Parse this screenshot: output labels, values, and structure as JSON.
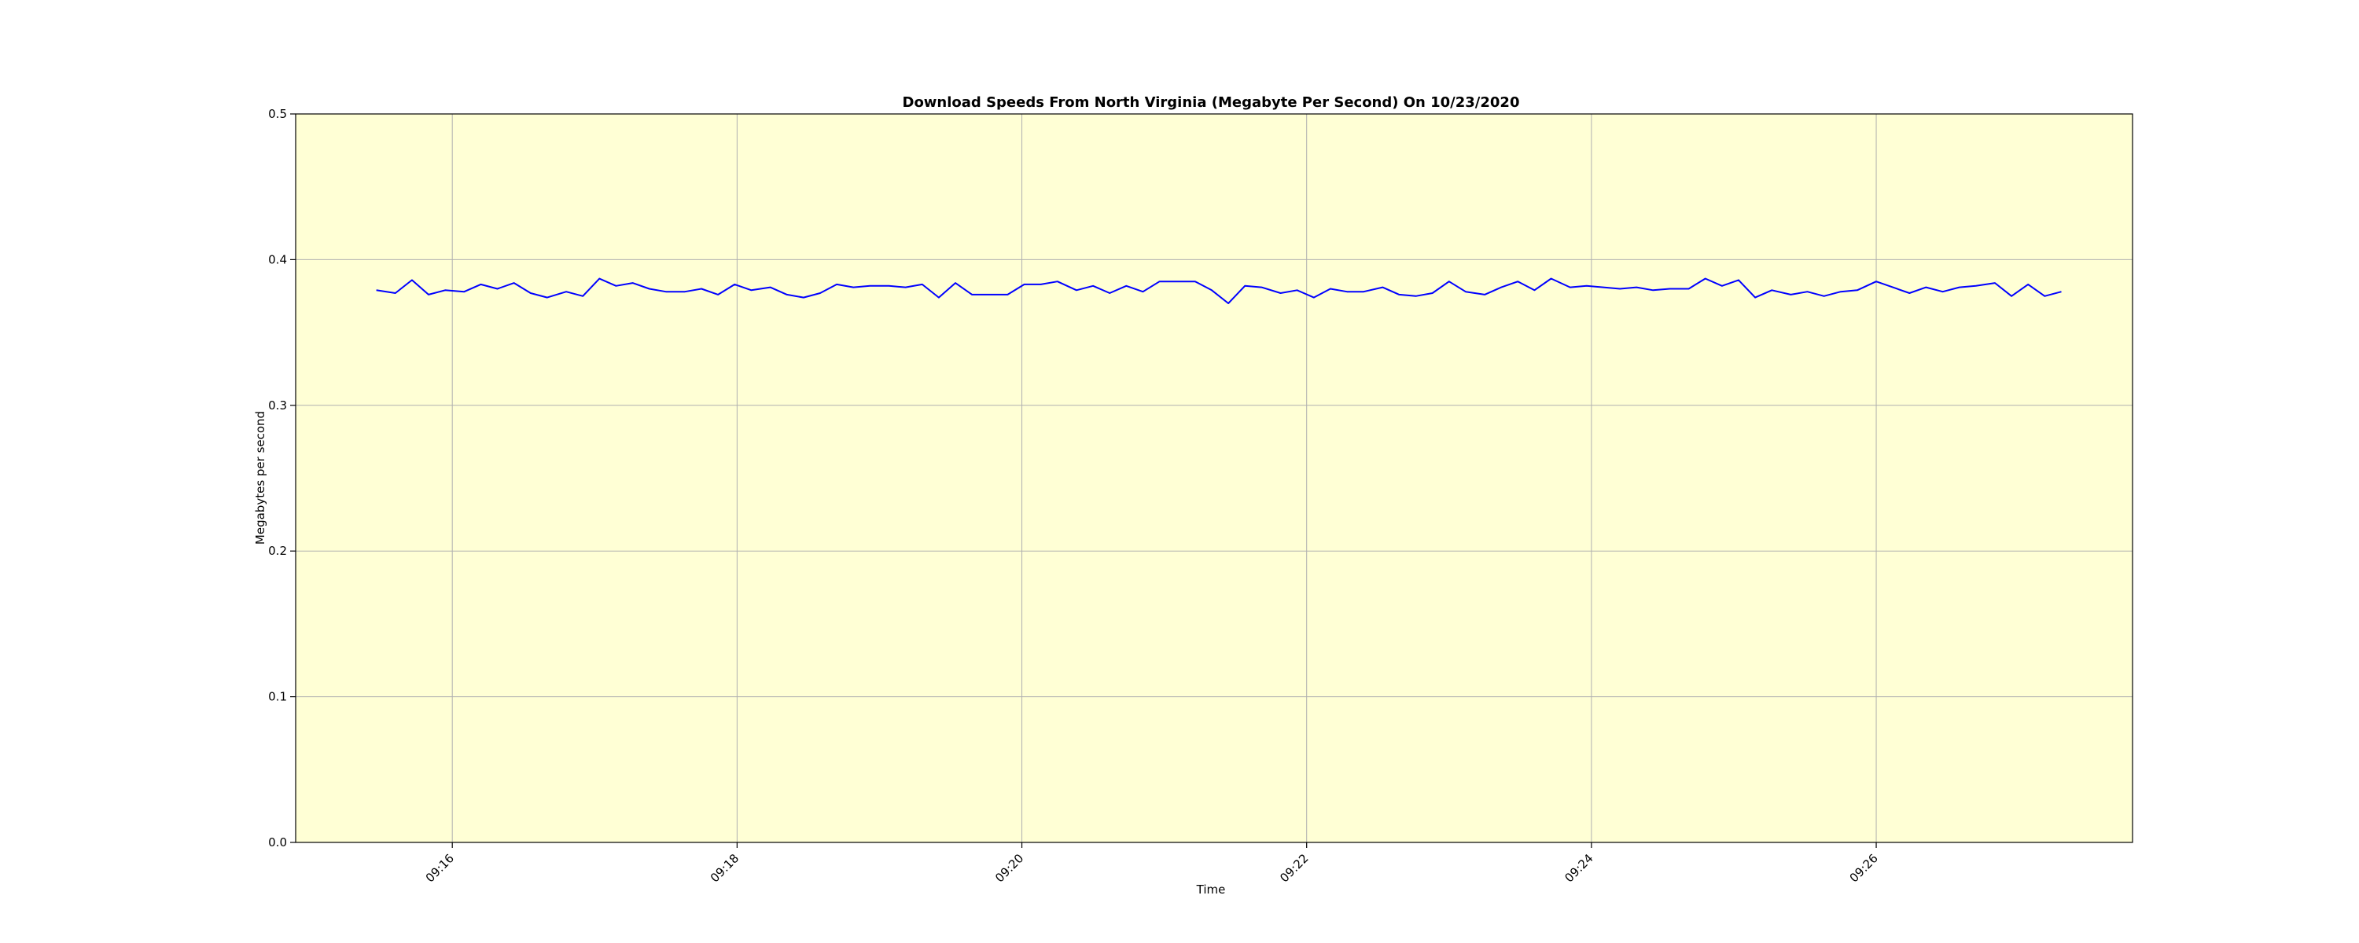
{
  "chart_data": {
    "type": "line",
    "title": "Download Speeds From North Virginia (Megabyte Per Second) On 10/23/2020",
    "xlabel": "Time",
    "ylabel": "Megabytes per second",
    "ylim": [
      0.0,
      0.5
    ],
    "xlim": [
      "09:14:54",
      "09:27:48"
    ],
    "yticks": [
      "0.0",
      "0.1",
      "0.2",
      "0.3",
      "0.4",
      "0.5"
    ],
    "xticks": [
      "09:16",
      "09:18",
      "09:20",
      "09:22",
      "09:24",
      "09:26"
    ],
    "grid": true,
    "series": [
      {
        "x": [
          "09:15:28",
          "09:15:36",
          "09:15:43",
          "09:15:50",
          "09:15:57",
          "09:16:05",
          "09:16:12",
          "09:16:19",
          "09:16:26",
          "09:16:33",
          "09:16:40",
          "09:16:48",
          "09:16:55",
          "09:17:02",
          "09:17:09",
          "09:17:16",
          "09:17:23",
          "09:17:30",
          "09:17:38",
          "09:17:45",
          "09:17:52",
          "09:17:59",
          "09:18:06",
          "09:18:14",
          "09:18:21",
          "09:18:28",
          "09:18:35",
          "09:18:42",
          "09:18:49",
          "09:18:56",
          "09:19:04",
          "09:19:11",
          "09:19:18",
          "09:19:25",
          "09:19:32",
          "09:19:39",
          "09:19:47",
          "09:19:54",
          "09:20:01",
          "09:20:08",
          "09:20:15",
          "09:20:23",
          "09:20:30",
          "09:20:37",
          "09:20:44",
          "09:20:51",
          "09:20:58",
          "09:21:06",
          "09:21:13",
          "09:21:20",
          "09:21:27",
          "09:21:34",
          "09:21:41",
          "09:21:49",
          "09:21:56",
          "09:22:03",
          "09:22:10",
          "09:22:17",
          "09:22:24",
          "09:22:32",
          "09:22:39",
          "09:22:46",
          "09:22:53",
          "09:23:00",
          "09:23:07",
          "09:23:15",
          "09:23:22",
          "09:23:29",
          "09:23:36",
          "09:23:43",
          "09:23:51",
          "09:23:58",
          "09:24:05",
          "09:24:12",
          "09:24:19",
          "09:24:26",
          "09:24:33",
          "09:24:41",
          "09:24:48",
          "09:24:55",
          "09:25:02",
          "09:25:09",
          "09:25:16",
          "09:25:24",
          "09:25:31",
          "09:25:38",
          "09:25:45",
          "09:25:52",
          "09:26:00",
          "09:26:07",
          "09:26:14",
          "09:26:21",
          "09:26:28",
          "09:26:35",
          "09:26:42",
          "09:26:50",
          "09:26:57",
          "09:27:04",
          "09:27:11",
          "09:27:18"
        ],
        "values": [
          0.379,
          0.377,
          0.386,
          0.376,
          0.379,
          0.378,
          0.383,
          0.38,
          0.384,
          0.377,
          0.374,
          0.378,
          0.375,
          0.387,
          0.382,
          0.384,
          0.38,
          0.378,
          0.378,
          0.38,
          0.376,
          0.383,
          0.379,
          0.381,
          0.376,
          0.374,
          0.377,
          0.383,
          0.381,
          0.382,
          0.382,
          0.381,
          0.383,
          0.374,
          0.384,
          0.376,
          0.376,
          0.376,
          0.383,
          0.383,
          0.385,
          0.379,
          0.382,
          0.377,
          0.382,
          0.378,
          0.385,
          0.385,
          0.385,
          0.379,
          0.37,
          0.382,
          0.381,
          0.377,
          0.379,
          0.374,
          0.38,
          0.378,
          0.378,
          0.381,
          0.376,
          0.375,
          0.377,
          0.385,
          0.378,
          0.376,
          0.381,
          0.385,
          0.379,
          0.387,
          0.381,
          0.382,
          0.381,
          0.38,
          0.381,
          0.379,
          0.38,
          0.38,
          0.387,
          0.382,
          0.386,
          0.374,
          0.379,
          0.376,
          0.378,
          0.375,
          0.378,
          0.379,
          0.385,
          0.381,
          0.377,
          0.381,
          0.378,
          0.381,
          0.382,
          0.384,
          0.375,
          0.383,
          0.375,
          0.378
        ],
        "color": "#0000ff"
      }
    ],
    "colors": {
      "plot_background": "#ffffd5",
      "grid": "#b0b0b0",
      "line": "#0000ff"
    }
  }
}
